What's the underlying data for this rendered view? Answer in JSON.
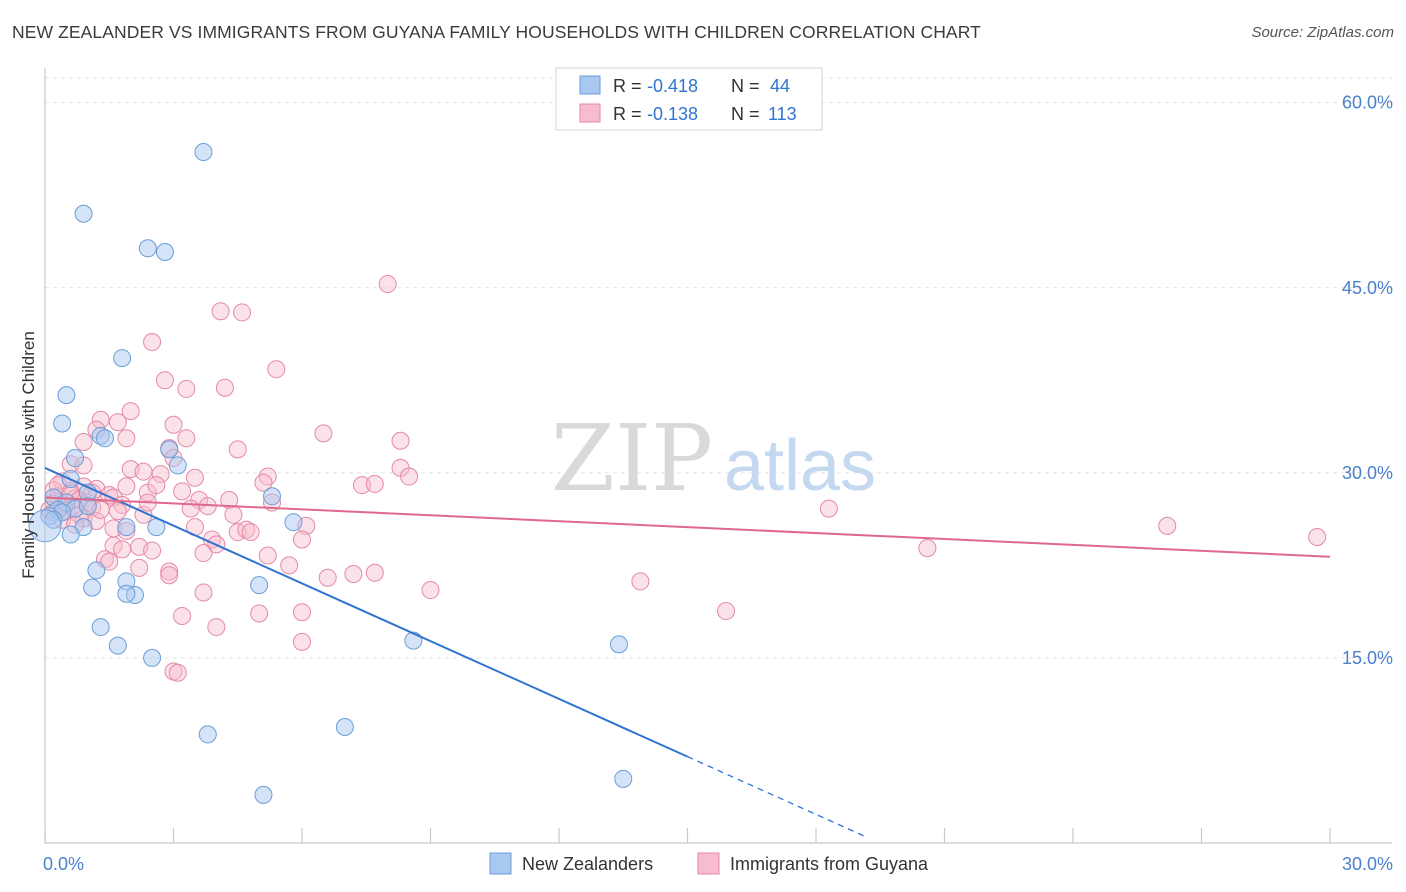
{
  "title": "NEW ZEALANDER VS IMMIGRANTS FROM GUYANA FAMILY HOUSEHOLDS WITH CHILDREN CORRELATION CHART",
  "source": "Source: ZipAtlas.com",
  "watermark": {
    "part1": "ZIP",
    "part2": "atlas"
  },
  "colors": {
    "blue_fill": "#a9c8f0",
    "blue_stroke": "#6a9ed8",
    "blue_line": "#2e74d0",
    "pink_fill": "#f7bccd",
    "pink_stroke": "#e58aa6",
    "pink_line": "#e0688f",
    "tick_label": "#4a80cc",
    "grid": "#e2e2e2",
    "axis": "#c8c8c8",
    "text": "#333333"
  },
  "legend": {
    "rows": [
      {
        "r_label": "R = ",
        "r_value": "-0.418",
        "n_label": "N = ",
        "n_value": "44"
      },
      {
        "r_label": "R = ",
        "r_value": "-0.138",
        "n_label": "N = ",
        "n_value": "113"
      }
    ]
  },
  "chart_data": {
    "type": "scatter",
    "title": "NEW ZEALANDER VS IMMIGRANTS FROM GUYANA FAMILY HOUSEHOLDS WITH CHILDREN CORRELATION CHART",
    "xlabel": "",
    "ylabel": "Family Households with Children",
    "xlim": [
      0,
      30
    ],
    "ylim": [
      0,
      62
    ],
    "y_ticks": [
      15,
      30,
      45,
      60
    ],
    "y_tick_labels": [
      "15.0%",
      "30.0%",
      "45.0%",
      "60.0%"
    ],
    "x_tick_labels": [
      "0.0%",
      "30.0%"
    ],
    "grid": true,
    "legend_position": "top-center",
    "series": [
      {
        "name": "New Zealanders",
        "r": -0.418,
        "n": 44,
        "trend": {
          "x0": 0.0,
          "y0": 30.4,
          "x1": 15.0,
          "y1": 7.0,
          "dashed_to_x": 19.2
        },
        "points": [
          [
            3.7,
            56.0
          ],
          [
            0.9,
            51.0
          ],
          [
            2.4,
            48.2
          ],
          [
            2.8,
            47.9
          ],
          [
            1.8,
            39.3
          ],
          [
            0.5,
            36.3
          ],
          [
            0.4,
            34.0
          ],
          [
            1.3,
            33.0
          ],
          [
            1.4,
            32.8
          ],
          [
            2.9,
            31.9
          ],
          [
            0.7,
            31.2
          ],
          [
            3.1,
            30.6
          ],
          [
            0.6,
            29.5
          ],
          [
            1.0,
            28.4
          ],
          [
            5.3,
            28.1
          ],
          [
            0.2,
            28.0
          ],
          [
            0.5,
            27.6
          ],
          [
            0.7,
            27.1
          ],
          [
            1.0,
            27.3
          ],
          [
            0.3,
            27.0
          ],
          [
            0.4,
            26.8
          ],
          [
            0.1,
            26.5
          ],
          [
            0.2,
            26.2
          ],
          [
            5.8,
            26.0
          ],
          [
            2.6,
            25.6
          ],
          [
            1.9,
            25.6
          ],
          [
            0.9,
            25.6
          ],
          [
            0.6,
            25.0
          ],
          [
            1.2,
            22.1
          ],
          [
            1.9,
            21.2
          ],
          [
            5.0,
            20.9
          ],
          [
            1.1,
            20.7
          ],
          [
            2.1,
            20.1
          ],
          [
            1.9,
            20.2
          ],
          [
            1.3,
            17.5
          ],
          [
            8.6,
            16.4
          ],
          [
            13.4,
            16.1
          ],
          [
            1.7,
            16.0
          ],
          [
            2.5,
            15.0
          ],
          [
            7.0,
            9.4
          ],
          [
            3.8,
            8.8
          ],
          [
            13.5,
            5.2
          ],
          [
            5.1,
            3.9
          ],
          [
            0.0,
            25.7
          ]
        ]
      },
      {
        "name": "Immigrants from Guyana",
        "r": -0.138,
        "n": 113,
        "trend": {
          "x0": 0.0,
          "y0": 28.0,
          "x1": 30.0,
          "y1": 23.2
        },
        "points": [
          [
            8.0,
            45.3
          ],
          [
            4.1,
            43.1
          ],
          [
            4.6,
            43.0
          ],
          [
            2.5,
            40.6
          ],
          [
            5.4,
            38.4
          ],
          [
            2.8,
            37.5
          ],
          [
            3.3,
            36.8
          ],
          [
            4.2,
            36.9
          ],
          [
            2.0,
            35.0
          ],
          [
            1.3,
            34.3
          ],
          [
            1.7,
            34.1
          ],
          [
            3.0,
            33.9
          ],
          [
            1.2,
            33.5
          ],
          [
            6.5,
            33.2
          ],
          [
            1.9,
            32.8
          ],
          [
            3.3,
            32.8
          ],
          [
            0.9,
            32.5
          ],
          [
            8.3,
            32.6
          ],
          [
            2.9,
            32.0
          ],
          [
            0.6,
            30.7
          ],
          [
            0.9,
            30.6
          ],
          [
            2.0,
            30.3
          ],
          [
            2.3,
            30.1
          ],
          [
            2.7,
            29.9
          ],
          [
            8.3,
            30.4
          ],
          [
            3.5,
            29.6
          ],
          [
            5.2,
            29.7
          ],
          [
            5.1,
            29.2
          ],
          [
            7.4,
            29.0
          ],
          [
            7.7,
            29.1
          ],
          [
            8.5,
            29.7
          ],
          [
            0.4,
            29.3
          ],
          [
            0.9,
            28.9
          ],
          [
            1.2,
            28.7
          ],
          [
            0.2,
            28.6
          ],
          [
            0.6,
            28.5
          ],
          [
            1.5,
            28.2
          ],
          [
            1.6,
            28.0
          ],
          [
            2.4,
            28.4
          ],
          [
            3.2,
            28.5
          ],
          [
            3.6,
            27.8
          ],
          [
            4.3,
            27.8
          ],
          [
            5.3,
            27.6
          ],
          [
            0.3,
            28.1
          ],
          [
            0.7,
            27.9
          ],
          [
            1.0,
            27.6
          ],
          [
            1.1,
            27.2
          ],
          [
            1.8,
            27.4
          ],
          [
            0.2,
            27.5
          ],
          [
            0.4,
            27.3
          ],
          [
            0.1,
            27.0
          ],
          [
            0.5,
            26.9
          ],
          [
            0.8,
            26.6
          ],
          [
            0.9,
            26.3
          ],
          [
            1.7,
            26.9
          ],
          [
            2.3,
            26.6
          ],
          [
            3.4,
            27.1
          ],
          [
            3.8,
            27.3
          ],
          [
            4.4,
            26.6
          ],
          [
            18.3,
            27.1
          ],
          [
            1.2,
            26.1
          ],
          [
            1.6,
            25.5
          ],
          [
            1.9,
            25.3
          ],
          [
            3.5,
            25.6
          ],
          [
            4.5,
            25.2
          ],
          [
            4.7,
            25.4
          ],
          [
            4.8,
            25.2
          ],
          [
            6.1,
            25.7
          ],
          [
            26.2,
            25.7
          ],
          [
            29.7,
            24.8
          ],
          [
            3.9,
            24.6
          ],
          [
            4.0,
            24.2
          ],
          [
            1.6,
            24.1
          ],
          [
            1.8,
            23.8
          ],
          [
            2.2,
            24.0
          ],
          [
            2.5,
            23.7
          ],
          [
            3.7,
            23.5
          ],
          [
            5.2,
            23.3
          ],
          [
            20.6,
            23.9
          ],
          [
            6.0,
            24.6
          ],
          [
            1.4,
            23.0
          ],
          [
            1.5,
            22.8
          ],
          [
            2.2,
            22.3
          ],
          [
            2.9,
            22.0
          ],
          [
            5.7,
            22.5
          ],
          [
            2.9,
            21.7
          ],
          [
            6.6,
            21.5
          ],
          [
            7.2,
            21.8
          ],
          [
            7.7,
            21.9
          ],
          [
            13.9,
            21.2
          ],
          [
            3.7,
            20.3
          ],
          [
            9.0,
            20.5
          ],
          [
            3.2,
            18.4
          ],
          [
            5.0,
            18.6
          ],
          [
            6.0,
            18.7
          ],
          [
            15.9,
            18.8
          ],
          [
            4.0,
            17.5
          ],
          [
            6.0,
            16.3
          ],
          [
            3.0,
            13.9
          ],
          [
            3.1,
            13.8
          ],
          [
            0.3,
            29.0
          ],
          [
            0.6,
            28.3
          ],
          [
            0.8,
            27.8
          ],
          [
            1.3,
            27.0
          ],
          [
            2.6,
            29.0
          ],
          [
            0.2,
            26.8
          ],
          [
            0.4,
            26.2
          ],
          [
            1.1,
            28.4
          ],
          [
            0.7,
            25.8
          ],
          [
            3.0,
            31.2
          ],
          [
            4.5,
            31.9
          ],
          [
            2.4,
            27.6
          ],
          [
            1.9,
            28.9
          ]
        ]
      }
    ]
  }
}
